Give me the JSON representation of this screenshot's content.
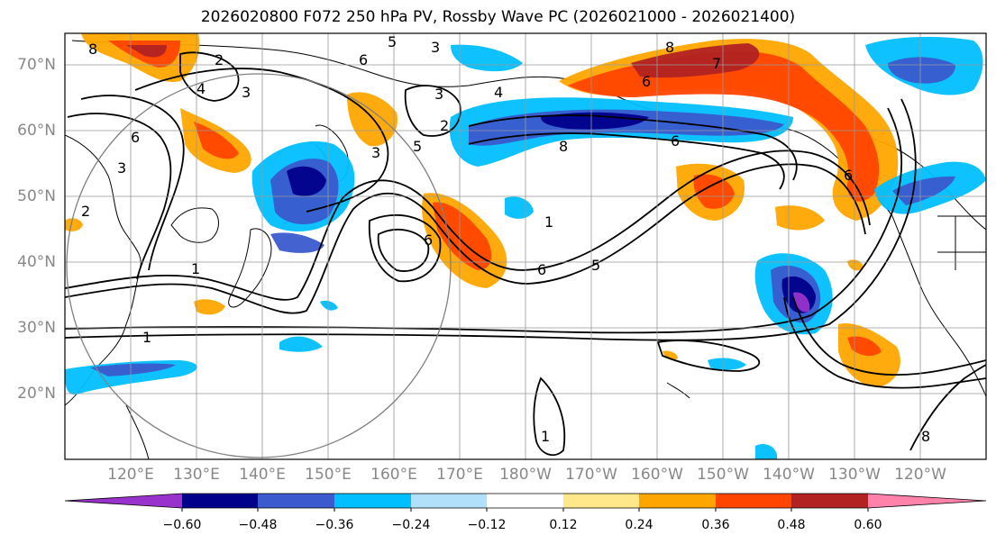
{
  "title": "2026020800 F072 250 hPa PV, Rossby Wave PC (2026021000 - 2026021400)",
  "lat_labels": [
    "70°N",
    "60°N",
    "50°N",
    "40°N",
    "30°N",
    "20°N"
  ],
  "lon_labels": [
    "120°E",
    "130°E",
    "140°E",
    "150°E",
    "160°E",
    "170°E",
    "180°W",
    "170°W",
    "160°W",
    "150°W",
    "140°W",
    "130°W",
    "120°W"
  ],
  "contour_labels": [
    "8",
    "2",
    "5",
    "3",
    "4",
    "3",
    "6",
    "3",
    "3",
    "4",
    "5",
    "6",
    "2",
    "2",
    "3",
    "6",
    "1",
    "6",
    "5",
    "1",
    "8",
    "6",
    "8",
    "1",
    "1",
    "8",
    "7",
    "6",
    "6"
  ],
  "colorbar": {
    "ticks": [
      "−0.60",
      "−0.48",
      "−0.36",
      "−0.24",
      "−0.12",
      "0.12",
      "0.24",
      "0.36",
      "0.48",
      "0.60"
    ],
    "colors": [
      "#9932cc",
      "#00008b",
      "#3a5acd",
      "#00bfff",
      "#b0e0fa",
      "#ffffff",
      "#ffe88a",
      "#ffa500",
      "#ff4500",
      "#b22222",
      "#ff82aa"
    ]
  }
}
